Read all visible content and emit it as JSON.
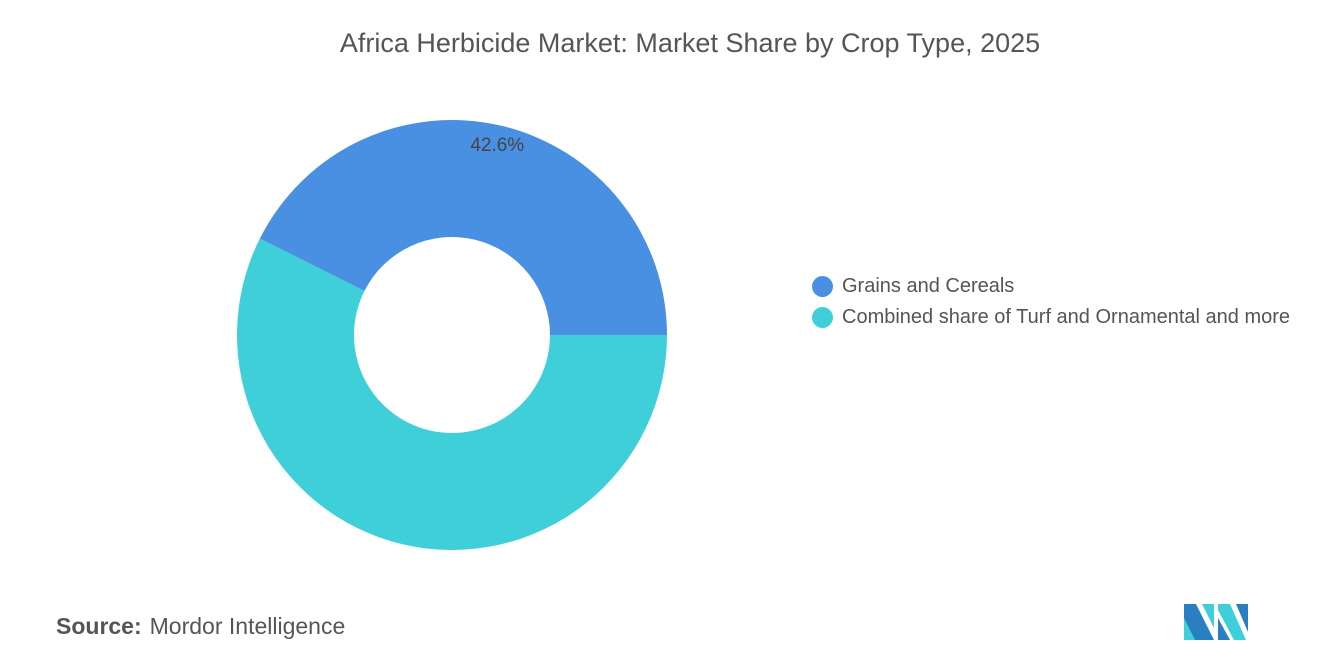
{
  "title": "Africa Herbicide Market: Market Share by Crop Type, 2025",
  "chart_data": {
    "type": "pie",
    "variant": "donut",
    "title": "Africa Herbicide Market: Market Share by Crop Type, 2025",
    "categories": [
      "Grains and Cereals",
      "Combined share of Turf and Ornamental and more"
    ],
    "values": [
      42.6,
      57.4
    ],
    "data_labels": [
      "42.6%",
      ""
    ],
    "colors": [
      "#4a90e2",
      "#3fcfd9"
    ],
    "legend_position": "right"
  },
  "source": {
    "label": "Source:",
    "value": "Mordor Intelligence"
  },
  "logo": {
    "text": "Mordor Intelligence logo"
  }
}
